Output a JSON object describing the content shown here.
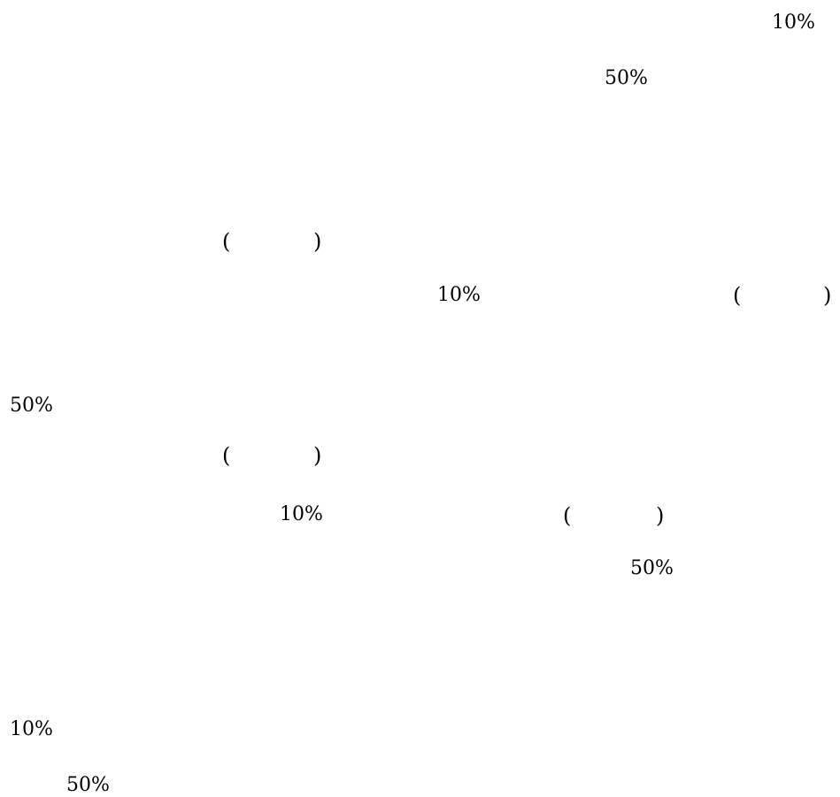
{
  "document": {
    "fragments": [
      {
        "id": "f1",
        "text": "10%"
      },
      {
        "id": "f2",
        "text": "50%"
      },
      {
        "id": "f3",
        "text": "("
      },
      {
        "id": "f4",
        "text": ")"
      },
      {
        "id": "f5",
        "text": "10%"
      },
      {
        "id": "f6",
        "text": "("
      },
      {
        "id": "f7",
        "text": ")"
      },
      {
        "id": "f8",
        "text": "50%"
      },
      {
        "id": "f9",
        "text": "("
      },
      {
        "id": "f10",
        "text": ")"
      },
      {
        "id": "f11",
        "text": "10%"
      },
      {
        "id": "f12",
        "text": "("
      },
      {
        "id": "f13",
        "text": ")"
      },
      {
        "id": "f14",
        "text": "50%"
      },
      {
        "id": "f15",
        "text": "10%"
      },
      {
        "id": "f16",
        "text": "50%"
      }
    ]
  }
}
